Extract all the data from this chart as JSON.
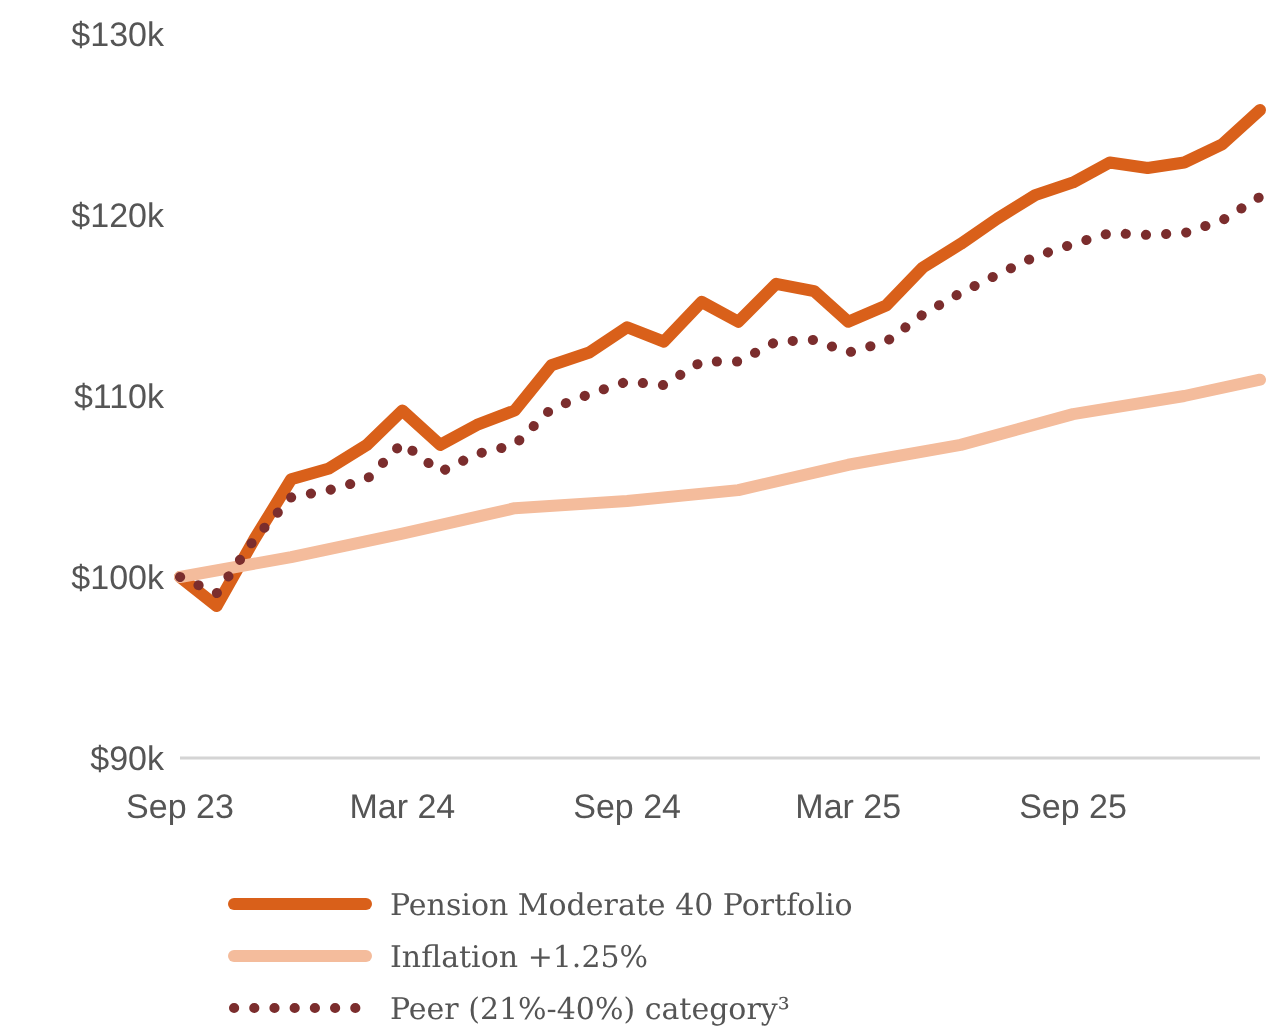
{
  "chart_data": {
    "type": "line",
    "x": [
      "2023-09",
      "2023-10",
      "2023-11",
      "2023-12",
      "2024-01",
      "2024-02",
      "2024-03",
      "2024-04",
      "2024-05",
      "2024-06",
      "2024-07",
      "2024-08",
      "2024-09",
      "2024-10",
      "2024-11",
      "2024-12",
      "2025-01",
      "2025-02",
      "2025-03",
      "2025-04",
      "2025-05",
      "2025-06",
      "2025-07",
      "2025-08",
      "2025-09",
      "2025-10",
      "2025-11",
      "2025-12",
      "2026-01",
      "2026-02"
    ],
    "series": [
      {
        "name": "Pension Moderate 40 Portfolio",
        "color": "#d9601a",
        "line_style": "solid",
        "values": [
          100,
          98.4,
          102.1,
          105.4,
          106,
          107.3,
          109.2,
          107.3,
          108.4,
          109.2,
          111.7,
          112.4,
          113.8,
          113,
          115.2,
          114.1,
          116.2,
          115.8,
          114.1,
          115,
          117.1,
          118.4,
          119.8,
          121.1,
          121.8,
          122.9,
          122.6,
          122.9,
          123.9,
          125.8
        ]
      },
      {
        "name": "Inflation +1.25%",
        "color": "#f4bc9c",
        "line_style": "solid",
        "x": [
          "2023-09",
          "2023-12",
          "2024-03",
          "2024-06",
          "2024-09",
          "2024-12",
          "2025-03",
          "2025-06",
          "2025-09",
          "2025-12",
          "2026-02"
        ],
        "values": [
          100,
          101.1,
          102.4,
          103.8,
          104.2,
          104.8,
          106.2,
          107.3,
          109,
          110,
          110.9
        ]
      },
      {
        "name": "Peer (21%-40%) category³",
        "color": "#7b2d2d",
        "line_style": "dotted",
        "values": [
          100,
          99.1,
          102.1,
          104.4,
          104.8,
          105.4,
          107.4,
          105.8,
          106.8,
          107.3,
          109.3,
          110.1,
          110.8,
          110.6,
          111.9,
          111.9,
          113,
          113.1,
          112.4,
          113,
          114.5,
          115.7,
          116.7,
          117.7,
          118.4,
          119,
          118.9,
          119,
          119.7,
          121
        ]
      }
    ],
    "xlim": [
      "2023-09",
      "2026-02"
    ],
    "xticks": [
      {
        "value": "2023-09",
        "label": "Sep 23"
      },
      {
        "value": "2024-03",
        "label": "Mar 24"
      },
      {
        "value": "2024-09",
        "label": "Sep 24"
      },
      {
        "value": "2025-03",
        "label": "Mar 25"
      },
      {
        "value": "2025-09",
        "label": "Sep 25"
      }
    ],
    "ylim": [
      90,
      130
    ],
    "yticks": [
      {
        "value": 90,
        "label": "$90k"
      },
      {
        "value": 100,
        "label": "$100k"
      },
      {
        "value": 110,
        "label": "$110k"
      },
      {
        "value": 120,
        "label": "$120k"
      },
      {
        "value": 130,
        "label": "$130k"
      }
    ],
    "grid": false,
    "legend": "bottom",
    "marker": "none"
  }
}
